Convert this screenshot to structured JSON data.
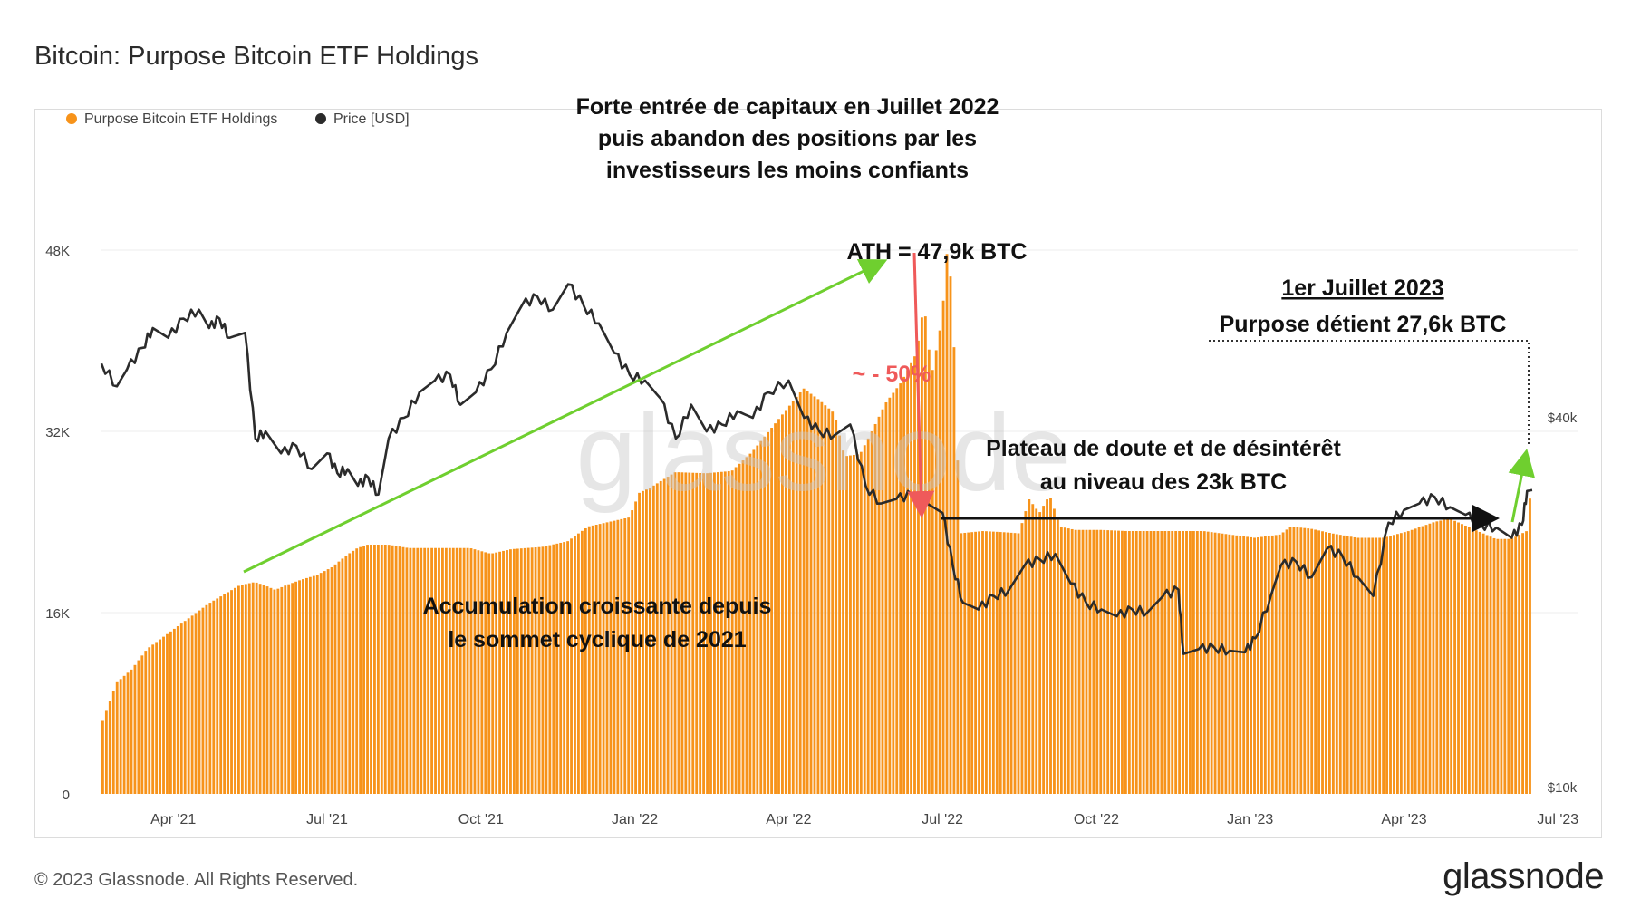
{
  "page": {
    "title": "Bitcoin: Purpose Bitcoin ETF Holdings",
    "copyright": "© 2023 Glassnode. All Rights Reserved.",
    "logo": "glassnode",
    "watermark": "glassnode"
  },
  "colors": {
    "holdings": "#f7931a",
    "price": "#2b2b2b",
    "green_arrow": "#6fcf2f",
    "red_arrow": "#ef5a5a",
    "annotation_red": "#ef5a5a",
    "grid": "#ececec",
    "axis_text": "#444444"
  },
  "chart_data": {
    "type": "bar+line",
    "title": "Bitcoin: Purpose Bitcoin ETF Holdings",
    "legend": [
      {
        "label": "Purpose Bitcoin ETF Holdings",
        "color": "#f7931a"
      },
      {
        "label": "Price [USD]",
        "color": "#2b2b2b"
      }
    ],
    "x_range": [
      0,
      27.9
    ],
    "x_unit": "months since Feb 19 2021",
    "x_ticks": [
      {
        "label": "Apr '21",
        "value": 1.4
      },
      {
        "label": "Jul '21",
        "value": 4.4
      },
      {
        "label": "Oct '21",
        "value": 7.4
      },
      {
        "label": "Jan '22",
        "value": 10.4
      },
      {
        "label": "Apr '22",
        "value": 13.4
      },
      {
        "label": "Jul '22",
        "value": 16.4
      },
      {
        "label": "Oct '22",
        "value": 19.4
      },
      {
        "label": "Jan '23",
        "value": 22.4
      },
      {
        "label": "Apr '23",
        "value": 25.4
      },
      {
        "label": "Jul '23",
        "value": 28.4
      }
    ],
    "y_left": {
      "min": 0,
      "max": 48000,
      "ticks": [
        {
          "label": "0",
          "value": 0
        },
        {
          "label": "16K",
          "value": 16000
        },
        {
          "label": "32K",
          "value": 32000
        },
        {
          "label": "48K",
          "value": 48000
        }
      ]
    },
    "y_right": {
      "type": "log",
      "ticks": [
        {
          "label": "$10k",
          "value": 10000
        },
        {
          "label": "$40k",
          "value": 40000
        }
      ]
    },
    "holdings": {
      "name": "Purpose Bitcoin ETF Holdings",
      "unit": "BTC",
      "points": [
        [
          0,
          6000
        ],
        [
          0.3,
          9800
        ],
        [
          0.6,
          11000
        ],
        [
          0.9,
          12800
        ],
        [
          1.2,
          13800
        ],
        [
          1.5,
          14800
        ],
        [
          1.8,
          15800
        ],
        [
          2.1,
          16800
        ],
        [
          2.4,
          17600
        ],
        [
          2.7,
          18400
        ],
        [
          3.0,
          18700
        ],
        [
          3.2,
          18400
        ],
        [
          3.4,
          18000
        ],
        [
          3.6,
          18400
        ],
        [
          3.9,
          18900
        ],
        [
          4.2,
          19300
        ],
        [
          4.5,
          20000
        ],
        [
          4.8,
          21100
        ],
        [
          5.0,
          21700
        ],
        [
          5.2,
          22000
        ],
        [
          5.6,
          22000
        ],
        [
          6.0,
          21700
        ],
        [
          6.6,
          21700
        ],
        [
          7.2,
          21700
        ],
        [
          7.6,
          21200
        ],
        [
          8.0,
          21600
        ],
        [
          8.6,
          21800
        ],
        [
          9.1,
          22300
        ],
        [
          9.5,
          23600
        ],
        [
          9.9,
          24000
        ],
        [
          10.3,
          24400
        ],
        [
          10.5,
          26600
        ],
        [
          10.7,
          27000
        ],
        [
          11.2,
          28400
        ],
        [
          11.8,
          28300
        ],
        [
          12.3,
          28500
        ],
        [
          12.7,
          30200
        ],
        [
          13.2,
          33000
        ],
        [
          13.7,
          35800
        ],
        [
          14.0,
          34800
        ],
        [
          14.3,
          33600
        ],
        [
          14.5,
          29800
        ],
        [
          14.8,
          30000
        ],
        [
          15.0,
          31700
        ],
        [
          15.3,
          34500
        ],
        [
          15.6,
          36300
        ],
        [
          15.9,
          38900
        ],
        [
          16.05,
          43300
        ],
        [
          16.2,
          37000
        ],
        [
          16.4,
          42000
        ],
        [
          16.5,
          47900
        ],
        [
          16.6,
          44500
        ],
        [
          16.75,
          23000
        ],
        [
          17.2,
          23200
        ],
        [
          17.6,
          23100
        ],
        [
          17.9,
          23000
        ],
        [
          18.1,
          26000
        ],
        [
          18.3,
          24800
        ],
        [
          18.5,
          26400
        ],
        [
          18.7,
          23600
        ],
        [
          19.0,
          23300
        ],
        [
          19.5,
          23300
        ],
        [
          20.0,
          23200
        ],
        [
          20.5,
          23200
        ],
        [
          21.0,
          23200
        ],
        [
          21.5,
          23200
        ],
        [
          22.0,
          22900
        ],
        [
          22.5,
          22600
        ],
        [
          23.0,
          22900
        ],
        [
          23.2,
          23600
        ],
        [
          23.6,
          23400
        ],
        [
          24.0,
          23000
        ],
        [
          24.5,
          22600
        ],
        [
          25.0,
          22600
        ],
        [
          25.5,
          23200
        ],
        [
          26.0,
          24000
        ],
        [
          26.3,
          24300
        ],
        [
          26.7,
          23500
        ],
        [
          27.2,
          22500
        ],
        [
          27.5,
          22500
        ],
        [
          27.8,
          23200
        ],
        [
          27.9,
          27600
        ]
      ]
    },
    "price": {
      "name": "Price [USD]",
      "unit": "USD",
      "points": [
        [
          0,
          49000
        ],
        [
          0.3,
          45000
        ],
        [
          0.5,
          48000
        ],
        [
          0.8,
          52000
        ],
        [
          1.0,
          56000
        ],
        [
          1.3,
          54000
        ],
        [
          1.6,
          58000
        ],
        [
          1.9,
          60000
        ],
        [
          2.1,
          56000
        ],
        [
          2.3,
          58000
        ],
        [
          2.5,
          54000
        ],
        [
          2.8,
          55000
        ],
        [
          3.0,
          37000
        ],
        [
          3.2,
          38000
        ],
        [
          3.5,
          35000
        ],
        [
          3.8,
          36000
        ],
        [
          4.1,
          33000
        ],
        [
          4.4,
          35000
        ],
        [
          4.6,
          32500
        ],
        [
          4.8,
          33000
        ],
        [
          5.0,
          31000
        ],
        [
          5.2,
          32000
        ],
        [
          5.4,
          30000
        ],
        [
          5.6,
          37000
        ],
        [
          5.9,
          40000
        ],
        [
          6.2,
          44000
        ],
        [
          6.5,
          46000
        ],
        [
          6.8,
          47000
        ],
        [
          7.0,
          42000
        ],
        [
          7.3,
          44000
        ],
        [
          7.6,
          48000
        ],
        [
          7.9,
          55000
        ],
        [
          8.2,
          61000
        ],
        [
          8.5,
          63000
        ],
        [
          8.8,
          60000
        ],
        [
          9.1,
          66000
        ],
        [
          9.4,
          61000
        ],
        [
          9.7,
          57000
        ],
        [
          10.0,
          51000
        ],
        [
          10.3,
          47000
        ],
        [
          10.6,
          46000
        ],
        [
          10.9,
          43000
        ],
        [
          11.2,
          37000
        ],
        [
          11.5,
          42000
        ],
        [
          11.8,
          38000
        ],
        [
          12.1,
          39000
        ],
        [
          12.4,
          41000
        ],
        [
          12.7,
          40000
        ],
        [
          13.0,
          44000
        ],
        [
          13.4,
          46000
        ],
        [
          13.7,
          40000
        ],
        [
          14.0,
          38000
        ],
        [
          14.3,
          37500
        ],
        [
          14.6,
          39000
        ],
        [
          14.9,
          31000
        ],
        [
          15.2,
          29000
        ],
        [
          15.5,
          29500
        ],
        [
          15.8,
          30000
        ],
        [
          16.1,
          29000
        ],
        [
          16.4,
          28000
        ],
        [
          16.6,
          23000
        ],
        [
          16.8,
          20000
        ],
        [
          17.1,
          19500
        ],
        [
          17.4,
          20500
        ],
        [
          17.7,
          21000
        ],
        [
          18.0,
          23000
        ],
        [
          18.3,
          23500
        ],
        [
          18.6,
          24000
        ],
        [
          18.9,
          21500
        ],
        [
          19.2,
          20000
        ],
        [
          19.5,
          19500
        ],
        [
          19.8,
          19000
        ],
        [
          20.1,
          19500
        ],
        [
          20.4,
          19300
        ],
        [
          20.7,
          20500
        ],
        [
          21.0,
          21000
        ],
        [
          21.1,
          16500
        ],
        [
          21.4,
          16800
        ],
        [
          21.7,
          16900
        ],
        [
          22.0,
          16700
        ],
        [
          22.3,
          16600
        ],
        [
          22.5,
          17500
        ],
        [
          22.8,
          20500
        ],
        [
          23.0,
          23000
        ],
        [
          23.3,
          23300
        ],
        [
          23.6,
          22000
        ],
        [
          23.9,
          24500
        ],
        [
          24.2,
          23800
        ],
        [
          24.5,
          22000
        ],
        [
          24.8,
          20500
        ],
        [
          25.1,
          27000
        ],
        [
          25.4,
          28300
        ],
        [
          25.7,
          29000
        ],
        [
          26.0,
          29700
        ],
        [
          26.3,
          28600
        ],
        [
          26.6,
          27800
        ],
        [
          26.9,
          26800
        ],
        [
          27.2,
          26500
        ],
        [
          27.5,
          25500
        ],
        [
          27.7,
          26800
        ],
        [
          27.8,
          30400
        ],
        [
          27.9,
          30500
        ]
      ]
    },
    "annotations": {
      "top_title": [
        "Forte entrée de capitaux en Juillet 2022",
        "puis abandon des positions par les",
        "investisseurs les moins confiants"
      ],
      "ath": "ATH = 47,9k BTC",
      "drop": "~ - 50%",
      "date_label": "1er Juillet 2023",
      "holding_label": "Purpose détient 27,6k BTC",
      "plateau": [
        "Plateau de doute et de désintérêt",
        "au niveau des 23k BTC"
      ],
      "accumulation": [
        "Accumulation croissante depuis",
        "le sommet cyclique de 2021"
      ]
    }
  }
}
